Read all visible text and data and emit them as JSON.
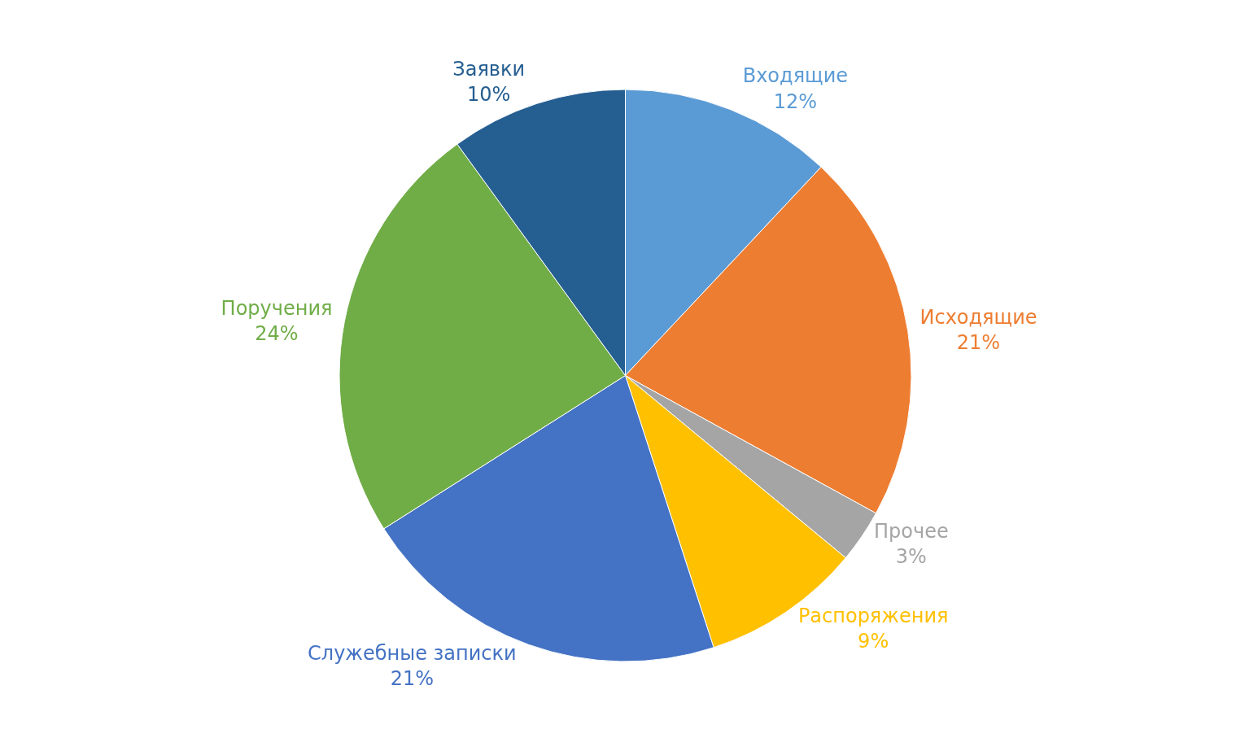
{
  "chart_data": {
    "type": "pie",
    "categories": [
      "Входящие",
      "Исходящие",
      "Прочее",
      "Распоряжения",
      "Служебные записки",
      "Поручения",
      "Заявки"
    ],
    "values": [
      12,
      21,
      3,
      9,
      21,
      24,
      10
    ],
    "value_labels": [
      "12%",
      "21%",
      "3%",
      "9%",
      "21%",
      "24%",
      "10%"
    ],
    "colors": [
      "#5b9bd5",
      "#ed7d31",
      "#a5a5a5",
      "#ffc000",
      "#4472c4",
      "#70ad47",
      "#255e91"
    ],
    "legend": false
  }
}
